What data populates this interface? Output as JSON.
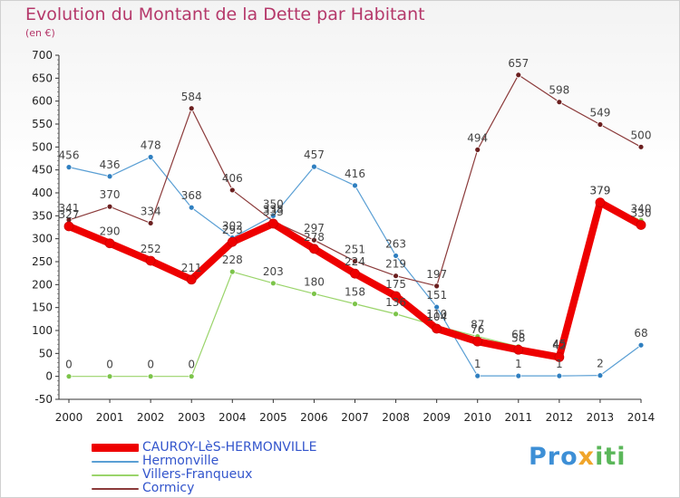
{
  "title": "Evolution du Montant de la Dette par Habitant",
  "subtitle": "(en €)",
  "brand": {
    "part1": "Pro",
    "part2": "x",
    "part3": "iti"
  },
  "chart_data": {
    "type": "line",
    "x": [
      "2000",
      "2001",
      "2002",
      "2003",
      "2004",
      "2005",
      "2006",
      "2007",
      "2008",
      "2009",
      "2010",
      "2011",
      "2012",
      "2013",
      "2014"
    ],
    "ylim": [
      -50,
      700
    ],
    "yticks": [
      "-50",
      "0",
      "50",
      "100",
      "150",
      "200",
      "250",
      "300",
      "350",
      "400",
      "450",
      "500",
      "550",
      "600",
      "650",
      "700"
    ],
    "grid": false,
    "legend_position": "bottom-left",
    "series": [
      {
        "name": "Hermonville",
        "color": "#5a9fd4",
        "point_color": "#2f7fc0",
        "width": 1.2,
        "values": [
          456,
          436,
          478,
          368,
          302,
          350,
          457,
          416,
          263,
          151,
          1,
          1,
          1,
          2,
          68
        ],
        "labels": [
          "456",
          "436",
          "478",
          "368",
          "302",
          "350",
          "457",
          "416",
          "263",
          "151",
          "1",
          "1",
          "1",
          "2",
          "68"
        ]
      },
      {
        "name": "Villers-Franqueux",
        "color": "#9ad46a",
        "point_color": "#7cc44a",
        "width": 1.2,
        "values": [
          0,
          0,
          0,
          0,
          228,
          203,
          180,
          158,
          136,
          110,
          87,
          65,
          45,
          379,
          340
        ],
        "labels": [
          "0",
          "0",
          "0",
          "0",
          "228",
          "203",
          "180",
          "158",
          "136",
          "110",
          "87",
          "65",
          "45",
          "379",
          "340"
        ]
      },
      {
        "name": "Cormicy",
        "color": "#8b3a3a",
        "point_color": "#6b1f1f",
        "width": 1.2,
        "values": [
          341,
          370,
          334,
          584,
          406,
          338,
          297,
          251,
          219,
          197,
          494,
          657,
          598,
          549,
          500
        ],
        "labels": [
          "341",
          "370",
          "334",
          "584",
          "406",
          "338",
          "297",
          "251",
          "219",
          "197",
          "494",
          "657",
          "598",
          "549",
          "500"
        ]
      },
      {
        "name": "CAUROY-LèS-HERMONVILLE",
        "color": "#ee0000",
        "point_color": "#ee0000",
        "width": 8,
        "values": [
          327,
          290,
          252,
          211,
          293,
          333,
          278,
          224,
          175,
          104,
          76,
          58,
          42,
          379,
          330
        ],
        "labels": [
          "327",
          "290",
          "252",
          "211",
          "293",
          "333",
          "278",
          "224",
          "175",
          "104",
          "76",
          "58",
          "42",
          "379",
          "330"
        ]
      }
    ],
    "legend": [
      {
        "name": "CAUROY-LèS-HERMONVILLE",
        "color": "#ee0000",
        "text_color": "#3355cc"
      },
      {
        "name": "Hermonville",
        "color": "#5a9fd4",
        "text_color": "#3355cc"
      },
      {
        "name": "Villers-Franqueux",
        "color": "#9ad46a",
        "text_color": "#3355cc"
      },
      {
        "name": "Cormicy",
        "color": "#8b3a3a",
        "text_color": "#3355cc"
      }
    ]
  }
}
